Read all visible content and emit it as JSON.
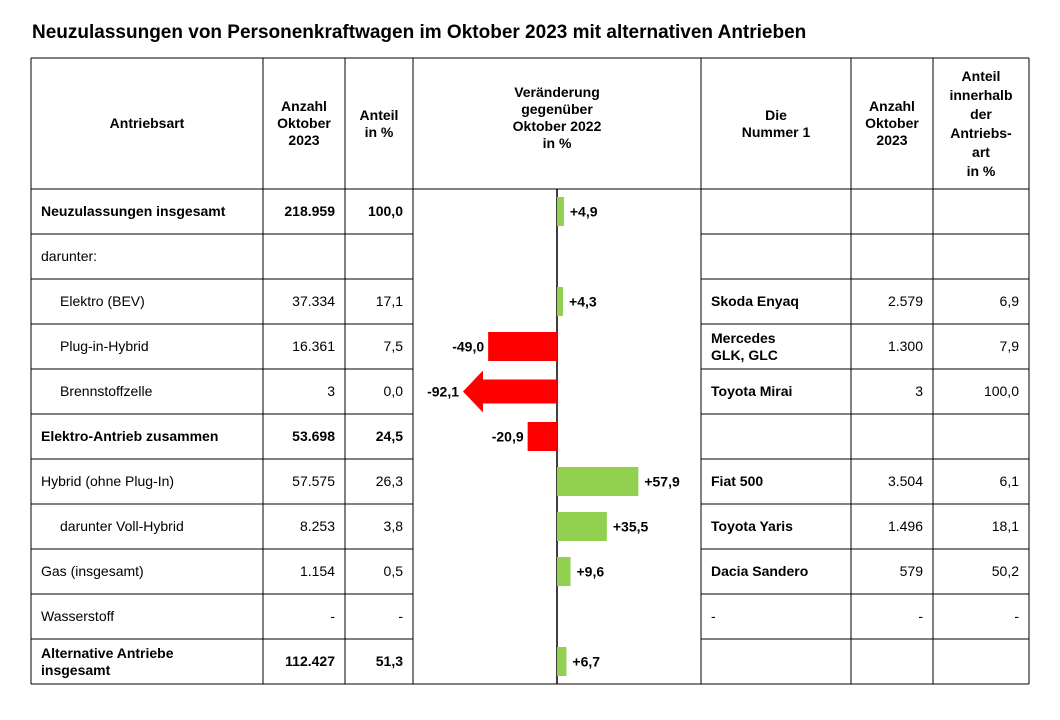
{
  "title": "Neuzulassungen von Personenkraftwagen im Oktober 2023 mit alternativen Antrieben",
  "headers": {
    "antriebsart": "Antriebsart",
    "anzahl": [
      "Anzahl",
      "Oktober",
      "2023"
    ],
    "anteil": [
      "Anteil",
      "in %"
    ],
    "veraenderung": [
      "Veränderung",
      "gegenüber",
      "Oktober 2022",
      "in %"
    ],
    "nummer1": [
      "Die",
      "Nummer 1"
    ],
    "anzahl2": [
      "Anzahl",
      "Oktober",
      "2023"
    ],
    "anteil2": [
      "Anteil",
      "innerhalb",
      "der",
      "Antriebs-",
      "art",
      "in %"
    ]
  },
  "rows": [
    {
      "label": [
        "Neuzulassungen insgesamt"
      ],
      "bold": true,
      "indent": false,
      "anzahl": "218.959",
      "anteil": "100,0",
      "change_label": "+4,9",
      "top": [
        "",
        ""
      ],
      "top_anzahl": "",
      "top_anteil": ""
    },
    {
      "label": [
        "darunter:"
      ],
      "bold": false,
      "indent": false,
      "anzahl": "",
      "anteil": "",
      "change_label": "",
      "top": [
        "",
        ""
      ],
      "top_anzahl": "",
      "top_anteil": ""
    },
    {
      "label": [
        "Elektro (BEV)"
      ],
      "bold": false,
      "indent": true,
      "anzahl": "37.334",
      "anteil": "17,1",
      "change_label": "+4,3",
      "top": [
        "Skoda Enyaq",
        ""
      ],
      "top_anzahl": "2.579",
      "top_anteil": "6,9"
    },
    {
      "label": [
        "Plug-in-Hybrid"
      ],
      "bold": false,
      "indent": true,
      "anzahl": "16.361",
      "anteil": "7,5",
      "change_label": "-49,0",
      "top": [
        "Mercedes",
        "GLK, GLC"
      ],
      "top_anzahl": "1.300",
      "top_anteil": "7,9"
    },
    {
      "label": [
        "Brennstoffzelle"
      ],
      "bold": false,
      "indent": true,
      "anzahl": "3",
      "anteil": "0,0",
      "change_label": "-92,1",
      "top": [
        "Toyota Mirai",
        ""
      ],
      "top_anzahl": "3",
      "top_anteil": "100,0"
    },
    {
      "label": [
        "Elektro-Antrieb zusammen"
      ],
      "bold": true,
      "indent": false,
      "anzahl": "53.698",
      "anteil": "24,5",
      "change_label": "-20,9",
      "top": [
        "",
        ""
      ],
      "top_anzahl": "",
      "top_anteil": ""
    },
    {
      "label": [
        "Hybrid (ohne Plug-In)"
      ],
      "bold": false,
      "indent": false,
      "anzahl": "57.575",
      "anteil": "26,3",
      "change_label": "+57,9",
      "top": [
        "Fiat 500",
        ""
      ],
      "top_anzahl": "3.504",
      "top_anteil": "6,1"
    },
    {
      "label": [
        "darunter Voll-Hybrid"
      ],
      "bold": false,
      "indent": true,
      "anzahl": "8.253",
      "anteil": "3,8",
      "change_label": "+35,5",
      "top": [
        "Toyota Yaris",
        ""
      ],
      "top_anzahl": "1.496",
      "top_anteil": "18,1"
    },
    {
      "label": [
        "Gas (insgesamt)"
      ],
      "bold": false,
      "indent": false,
      "anzahl": "1.154",
      "anteil": "0,5",
      "change_label": "+9,6",
      "top": [
        "Dacia Sandero",
        ""
      ],
      "top_anzahl": "579",
      "top_anteil": "50,2"
    },
    {
      "label": [
        "Wasserstoff"
      ],
      "bold": false,
      "indent": false,
      "anzahl": "-",
      "anteil": "-",
      "change_label": "",
      "top": [
        "-",
        ""
      ],
      "top_anzahl": "-",
      "top_anteil": "-"
    },
    {
      "label": [
        "Alternative Antriebe",
        "insgesamt"
      ],
      "bold": true,
      "indent": false,
      "anzahl": "112.427",
      "anteil": "51,3",
      "change_label": "+6,7",
      "top": [
        "",
        ""
      ],
      "top_anzahl": "",
      "top_anteil": ""
    }
  ],
  "chart_data": {
    "type": "bar",
    "orientation": "horizontal",
    "title": "Veränderung gegenüber Oktober 2022 in %",
    "categories": [
      "Neuzulassungen insgesamt",
      "darunter:",
      "Elektro (BEV)",
      "Plug-in-Hybrid",
      "Brennstoffzelle",
      "Elektro-Antrieb zusammen",
      "Hybrid (ohne Plug-In)",
      "darunter Voll-Hybrid",
      "Gas (insgesamt)",
      "Wasserstoff",
      "Alternative Antriebe insgesamt"
    ],
    "values": [
      4.9,
      null,
      4.3,
      -49.0,
      -92.1,
      -20.9,
      57.9,
      35.5,
      9.6,
      null,
      6.7
    ],
    "colors": {
      "positive": "#92d050",
      "negative": "#ff0000"
    },
    "truncated_bar_arrow": true
  }
}
